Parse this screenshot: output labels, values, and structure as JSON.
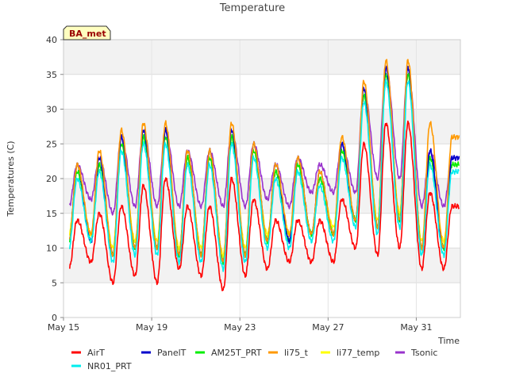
{
  "chart_data": {
    "type": "line",
    "title": "Temperature",
    "xlabel": "Time",
    "ylabel": "Temperatures (C)",
    "site_label": "BA_met",
    "ylim": [
      0,
      40
    ],
    "yticks": [
      0,
      5,
      10,
      15,
      20,
      25,
      30,
      35,
      40
    ],
    "xlim": [
      "2023-05-15",
      "2023-06-02"
    ],
    "xticks": [
      {
        "date": "2023-05-15",
        "label": "May 15"
      },
      {
        "date": "2023-05-19",
        "label": "May 19"
      },
      {
        "date": "2023-05-23",
        "label": "May 23"
      },
      {
        "date": "2023-05-27",
        "label": "May 27"
      },
      {
        "date": "2023-05-31",
        "label": "May 31"
      }
    ],
    "background_bands": true,
    "grid": true,
    "legend_position": "bottom",
    "days": [
      "2023-05-15",
      "2023-05-16",
      "2023-05-17",
      "2023-05-18",
      "2023-05-19",
      "2023-05-20",
      "2023-05-21",
      "2023-05-22",
      "2023-05-23",
      "2023-05-24",
      "2023-05-25",
      "2023-05-26",
      "2023-05-27",
      "2023-05-28",
      "2023-05-29",
      "2023-05-30",
      "2023-05-31",
      "2023-06-01"
    ],
    "series": [
      {
        "name": "AirT",
        "color": "#ff0000",
        "min": [
          7,
          8,
          5,
          6,
          5,
          7,
          6,
          4,
          6,
          7,
          8,
          8,
          8,
          10,
          9,
          10,
          7,
          7
        ],
        "max": [
          14,
          15,
          16,
          19,
          20,
          16,
          16,
          20,
          17,
          14,
          14,
          14,
          17,
          25,
          28,
          28,
          18,
          16
        ]
      },
      {
        "name": "PanelT",
        "color": "#0000cc",
        "min": [
          11,
          11,
          9,
          10,
          10,
          9,
          9,
          8,
          9,
          11,
          11,
          12,
          12,
          14,
          13,
          14,
          10,
          10
        ],
        "max": [
          22,
          23,
          26,
          27,
          27,
          24,
          24,
          27,
          25,
          22,
          23,
          21,
          25,
          33,
          36,
          36,
          24,
          23
        ]
      },
      {
        "name": "AM25T_PRT",
        "color": "#00ee00",
        "min": [
          11,
          11,
          9,
          10,
          10,
          9,
          9,
          8,
          9,
          11,
          11,
          12,
          12,
          14,
          13,
          14,
          10,
          10
        ],
        "max": [
          21,
          22,
          25,
          26,
          26,
          23,
          23,
          26,
          24,
          21,
          22,
          20,
          24,
          32,
          35,
          35,
          23,
          22
        ]
      },
      {
        "name": "li75_t",
        "color": "#ff9900",
        "min": [
          11,
          12,
          9,
          10,
          10,
          9,
          9,
          8,
          9,
          11,
          12,
          12,
          12,
          14,
          13,
          14,
          10,
          10
        ],
        "max": [
          22,
          24,
          27,
          28,
          28,
          24,
          24,
          28,
          25,
          22,
          23,
          21,
          26,
          34,
          37,
          37,
          28,
          26
        ]
      },
      {
        "name": "li77_temp",
        "color": "#ffff00",
        "min": [
          12,
          12,
          10,
          11,
          11,
          10,
          10,
          9,
          10,
          12,
          12,
          12,
          13,
          14,
          14,
          15,
          11,
          11
        ],
        "max": [
          21,
          22,
          25,
          26,
          26,
          23,
          23,
          26,
          24,
          21,
          22,
          20,
          24,
          32,
          35,
          35,
          23,
          22
        ]
      },
      {
        "name": "Tsonic",
        "color": "#9933cc",
        "min": [
          16,
          17,
          15,
          16,
          16,
          16,
          16,
          16,
          16,
          17,
          16,
          18,
          18,
          18,
          20,
          20,
          16,
          16
        ],
        "max": [
          22,
          23,
          26,
          27,
          27,
          24,
          24,
          27,
          25,
          22,
          23,
          22,
          25,
          33,
          36,
          36,
          24,
          23
        ]
      },
      {
        "name": "NR01_PRT",
        "color": "#00eeee",
        "min": [
          10,
          11,
          8,
          9,
          9,
          8,
          8,
          7,
          8,
          10,
          10,
          11,
          11,
          13,
          12,
          13,
          9,
          9
        ],
        "max": [
          20,
          21,
          24,
          25,
          25,
          22,
          22,
          25,
          23,
          20,
          21,
          19,
          23,
          31,
          34,
          34,
          22,
          21
        ]
      }
    ]
  }
}
